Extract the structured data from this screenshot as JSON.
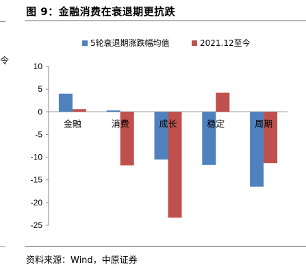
{
  "figure": {
    "title": "图 9：金融消费在衰退期更抗跌",
    "source": "资料来源：Wind，中原证券",
    "side_text": "令"
  },
  "chart_data": {
    "type": "bar",
    "categories": [
      "金融",
      "消费",
      "成长",
      "稳定",
      "周期"
    ],
    "series": [
      {
        "name": "5轮衰退期涨跌幅均值",
        "values": [
          4.0,
          0.3,
          -10.5,
          -11.7,
          -16.5
        ]
      },
      {
        "name": "2021.12至今",
        "values": [
          0.6,
          -11.8,
          -23.3,
          4.2,
          -11.3
        ]
      }
    ],
    "ylim": [
      -25,
      10
    ],
    "yticks": [
      10,
      5,
      0,
      -5,
      -10,
      -15,
      -20,
      -25
    ],
    "grid": false,
    "legend_position": "top",
    "colors": [
      "#4f81bd",
      "#c0504d"
    ],
    "title": "",
    "xlabel": "",
    "ylabel": ""
  }
}
